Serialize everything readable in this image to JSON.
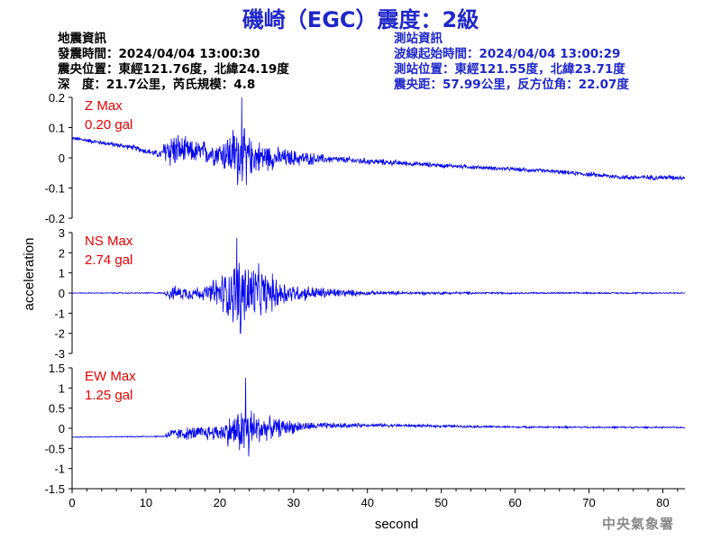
{
  "title": "磯崎（EGC）震度：2級",
  "quake_info": {
    "heading": "地震資訊",
    "time": "發震時間：2024/04/04 13:00:30",
    "epicenter": "震央位置：東經121.76度，北緯24.19度",
    "depth_magnitude": "深　度：21.7公里，芮氏規模：4.8"
  },
  "station_info": {
    "heading": "測站資訊",
    "wave_start": "波線起始時間：2024/04/04 13:00:29",
    "location": "測站位置：東經121.55度，北緯23.71度",
    "distance": "震央距：57.99公里，反方位角：22.07度"
  },
  "footer": "中央氣象署",
  "colors": {
    "title": "#1f27c9",
    "trace": "#0000ee",
    "max_label": "#e60000",
    "station": "#1f27c9"
  },
  "chart_data": [
    {
      "type": "line",
      "name": "Z",
      "max_label": "Z Max",
      "max_value": "0.20 gal",
      "ylim": [
        -0.2,
        0.2
      ],
      "yticks": [
        -0.2,
        -0.1,
        0,
        0.1,
        0.2
      ],
      "ytick_labels": [
        "-0.2",
        "-0.1",
        "0",
        "0.1",
        "0.2"
      ],
      "envelope": [
        {
          "t": 0,
          "base": 0.065,
          "amp": 0.008
        },
        {
          "t": 8,
          "base": 0.035,
          "amp": 0.01
        },
        {
          "t": 12,
          "base": 0.01,
          "amp": 0.015
        },
        {
          "t": 13,
          "base": 0.03,
          "amp": 0.08
        },
        {
          "t": 16,
          "base": 0.02,
          "amp": 0.045
        },
        {
          "t": 20,
          "base": 0.015,
          "amp": 0.05
        },
        {
          "t": 22.5,
          "base": 0.01,
          "amp": 0.13
        },
        {
          "t": 24,
          "base": 0.005,
          "amp": 0.075
        },
        {
          "t": 28,
          "base": 0.0,
          "amp": 0.04
        },
        {
          "t": 35,
          "base": -0.005,
          "amp": 0.015
        },
        {
          "t": 50,
          "base": -0.025,
          "amp": 0.008
        },
        {
          "t": 65,
          "base": -0.045,
          "amp": 0.008
        },
        {
          "t": 75,
          "base": -0.065,
          "amp": 0.01
        },
        {
          "t": 83,
          "base": -0.065,
          "amp": 0.01
        }
      ],
      "peaks": [
        {
          "t": 23.0,
          "v": 0.2
        },
        {
          "t": 23.6,
          "v": -0.09
        }
      ]
    },
    {
      "type": "line",
      "name": "NS",
      "max_label": "NS Max",
      "max_value": "2.74 gal",
      "ylim": [
        -3,
        3
      ],
      "yticks": [
        -3,
        -2,
        -1,
        0,
        1,
        2,
        3
      ],
      "ytick_labels": [
        "-3",
        "-2",
        "-1",
        "0",
        "1",
        "2",
        "3"
      ],
      "envelope": [
        {
          "t": 0,
          "base": 0,
          "amp": 0.02
        },
        {
          "t": 12.5,
          "base": 0,
          "amp": 0.04
        },
        {
          "t": 13,
          "base": 0,
          "amp": 0.4
        },
        {
          "t": 18,
          "base": 0,
          "amp": 0.4
        },
        {
          "t": 21.5,
          "base": 0,
          "amp": 1.6
        },
        {
          "t": 23,
          "base": 0,
          "amp": 2.3
        },
        {
          "t": 26,
          "base": 0,
          "amp": 1.3
        },
        {
          "t": 30,
          "base": 0,
          "amp": 0.5
        },
        {
          "t": 40,
          "base": 0,
          "amp": 0.12
        },
        {
          "t": 60,
          "base": 0,
          "amp": 0.05
        },
        {
          "t": 83,
          "base": 0,
          "amp": 0.04
        }
      ],
      "peaks": [
        {
          "t": 22.3,
          "v": 2.74
        },
        {
          "t": 22.8,
          "v": -2.0
        }
      ]
    },
    {
      "type": "line",
      "name": "EW",
      "max_label": "EW Max",
      "max_value": "1.25 gal",
      "xlabel": "second",
      "xlim": [
        0,
        83
      ],
      "xticks": [
        0,
        10,
        20,
        30,
        40,
        50,
        60,
        70,
        80
      ],
      "ylim": [
        -1.5,
        1.5
      ],
      "yticks": [
        -1.5,
        -1,
        -0.5,
        0,
        0.5,
        1,
        1.5
      ],
      "ytick_labels": [
        "-1.5",
        "-1",
        "-0.5",
        "0",
        "0.5",
        "1",
        "1.5"
      ],
      "envelope": [
        {
          "t": 0,
          "base": -0.22,
          "amp": 0.01
        },
        {
          "t": 12.5,
          "base": -0.2,
          "amp": 0.02
        },
        {
          "t": 13,
          "base": -0.15,
          "amp": 0.15
        },
        {
          "t": 20,
          "base": -0.1,
          "amp": 0.25
        },
        {
          "t": 23.5,
          "base": -0.05,
          "amp": 0.75
        },
        {
          "t": 26,
          "base": 0.0,
          "amp": 0.35
        },
        {
          "t": 32,
          "base": 0.05,
          "amp": 0.12
        },
        {
          "t": 40,
          "base": 0.08,
          "amp": 0.05
        },
        {
          "t": 60,
          "base": 0.03,
          "amp": 0.03
        },
        {
          "t": 83,
          "base": 0.02,
          "amp": 0.02
        }
      ],
      "peaks": [
        {
          "t": 23.5,
          "v": 1.25
        },
        {
          "t": 23.9,
          "v": -0.7
        }
      ]
    }
  ],
  "shared": {
    "ylabel": "acceleration"
  }
}
